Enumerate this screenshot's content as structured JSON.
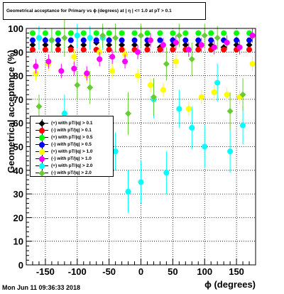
{
  "title": "Geometrical acceptance for Primary vs ϕ (degrees) at | η | <= 1.0 at pT > 0.1",
  "timestamp": "Mon Jun 11 09:36:33 2018",
  "chart_data": {
    "type": "scatter",
    "title": "Geometrical acceptance for Primary vs ϕ (degrees) at | η | <= 1.0 at pT > 0.1",
    "xlabel": "ϕ (degrees)",
    "ylabel": "Geometrical acceptance (%)",
    "xlim": [
      -180,
      180
    ],
    "ylim": [
      0,
      100
    ],
    "xticks": [
      -150,
      -100,
      -50,
      0,
      50,
      100,
      150
    ],
    "yticks": [
      0,
      10,
      20,
      30,
      40,
      50,
      60,
      70,
      80,
      90,
      100
    ],
    "grid": true,
    "legend_position": "left-middle",
    "series": [
      {
        "name": "(+) with pT/|q| > 0.1",
        "color": "#000000",
        "x": [
          -170,
          -150,
          -130,
          -110,
          -90,
          -70,
          -50,
          -30,
          -10,
          10,
          30,
          50,
          70,
          90,
          110,
          130,
          150,
          170
        ],
        "y": [
          93,
          93,
          93,
          92,
          93,
          94,
          93,
          93,
          93,
          93,
          92,
          93,
          93,
          93,
          93,
          92,
          93,
          93
        ],
        "err": [
          1,
          1,
          1,
          1,
          1,
          1,
          1,
          1,
          1,
          1,
          1,
          1,
          1,
          1,
          1,
          1,
          1,
          1
        ]
      },
      {
        "name": "(-) with pT/|q| > 0.1",
        "color": "#ff0000",
        "x": [
          -170,
          -150,
          -130,
          -110,
          -90,
          -70,
          -50,
          -30,
          -10,
          10,
          30,
          50,
          70,
          90,
          110,
          130,
          150,
          170
        ],
        "y": [
          91,
          91,
          91,
          91,
          91,
          91,
          91,
          91,
          91,
          91,
          91,
          91,
          91,
          91,
          91,
          91,
          91,
          91
        ],
        "err": [
          1,
          1,
          1,
          1,
          1,
          1,
          1,
          1,
          1,
          1,
          1,
          1,
          1,
          1,
          1,
          1,
          1,
          1
        ]
      },
      {
        "name": "(+) with pT/|q| > 0.5",
        "color": "#00ff00",
        "x": [
          -170,
          -150,
          -130,
          -110,
          -90,
          -70,
          -50,
          -30,
          -10,
          10,
          30,
          50,
          70,
          90,
          110,
          130,
          150,
          170
        ],
        "y": [
          98,
          98,
          98,
          98,
          98,
          98,
          98,
          98,
          98,
          98,
          98,
          98,
          98,
          98,
          98,
          98,
          98,
          98
        ],
        "err": [
          1,
          1,
          1,
          1,
          1,
          1,
          1,
          1,
          1,
          1,
          1,
          1,
          1,
          1,
          1,
          1,
          1,
          1
        ]
      },
      {
        "name": "(-) with pT/|q| > 0.5",
        "color": "#0000ff",
        "x": [
          -170,
          -150,
          -130,
          -110,
          -90,
          -70,
          -50,
          -30,
          -10,
          10,
          30,
          50,
          70,
          90,
          110,
          130,
          150,
          170
        ],
        "y": [
          95,
          95,
          95,
          95,
          95,
          95,
          95,
          95,
          95,
          95,
          95,
          95,
          95,
          95,
          95,
          95,
          95,
          95
        ],
        "err": [
          1,
          1,
          1,
          1,
          1,
          1,
          1,
          1,
          1,
          1,
          1,
          1,
          1,
          1,
          1,
          1,
          1,
          1
        ]
      },
      {
        "name": "(+) with pT/|q| > 1.0",
        "color": "#ffff00",
        "x": [
          -165,
          -145,
          -125,
          -105,
          -85,
          -65,
          -45,
          -25,
          -5,
          15,
          35,
          55,
          75,
          95,
          115,
          135,
          155,
          175
        ],
        "y": [
          81,
          85,
          82,
          88,
          80,
          90,
          82,
          89,
          80,
          76,
          74,
          86,
          66,
          71,
          73,
          72,
          71,
          85
        ],
        "err": [
          3,
          3,
          3,
          3,
          3,
          3,
          3,
          3,
          3,
          3,
          3,
          3,
          3,
          3,
          3,
          3,
          3,
          3
        ]
      },
      {
        "name": "(-) with pT/|q| > 1.0",
        "color": "#ff00ff",
        "x": [
          -165,
          -145,
          -125,
          -105,
          -85,
          -65,
          -45,
          -25,
          -5,
          15,
          35,
          55,
          75,
          95,
          115,
          135,
          155,
          175
        ],
        "y": [
          84,
          86,
          82,
          83,
          81,
          87,
          88,
          86,
          90,
          95,
          93,
          94,
          91,
          93,
          92,
          94,
          92,
          97
        ],
        "err": [
          3,
          3,
          3,
          3,
          3,
          3,
          3,
          3,
          3,
          3,
          3,
          3,
          3,
          3,
          3,
          3,
          3,
          3
        ]
      },
      {
        "name": "(+) with pT/|q| > 2.0",
        "color": "#00ffff",
        "x": [
          -160,
          -140,
          -120,
          -100,
          -80,
          -60,
          -40,
          -20,
          0,
          20,
          40,
          60,
          80,
          100,
          120,
          140,
          160
        ],
        "y": [
          96,
          95,
          64,
          97,
          96,
          96,
          48,
          31,
          35,
          70,
          39,
          66,
          58,
          50,
          77,
          48,
          59
        ],
        "err": [
          5,
          5,
          8,
          5,
          5,
          5,
          8,
          9,
          9,
          8,
          9,
          8,
          9,
          9,
          8,
          9,
          8
        ]
      },
      {
        "name": "(-) with pT/|q| > 2.0",
        "color": "#66cc33",
        "x": [
          -160,
          -140,
          -120,
          -100,
          -80,
          -60,
          -40,
          -20,
          0,
          20,
          40,
          60,
          80,
          100,
          120,
          140,
          160
        ],
        "y": [
          67,
          95,
          96,
          76,
          75,
          97,
          96,
          64,
          97,
          71,
          85,
          97,
          87,
          97,
          96,
          65,
          72
        ],
        "err": [
          5,
          5,
          8,
          6,
          7,
          5,
          6,
          9,
          5,
          8,
          7,
          5,
          7,
          5,
          5,
          8,
          7
        ]
      }
    ]
  }
}
